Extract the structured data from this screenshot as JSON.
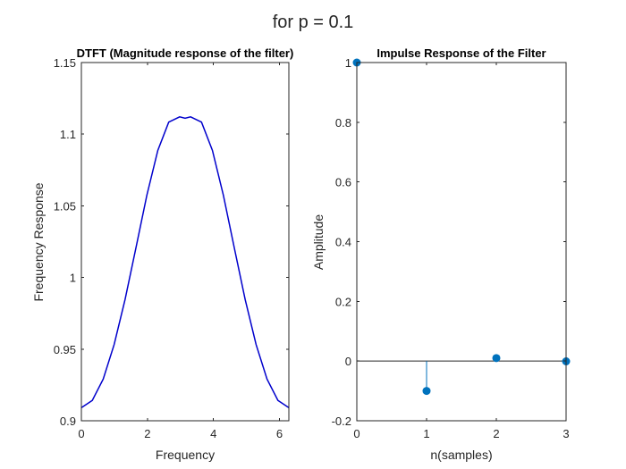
{
  "figure": {
    "suptitle": "for p = 0.1"
  },
  "chart_data": [
    {
      "type": "line",
      "title": "DTFT (Magnitude response of the filter)",
      "xlabel": "Frequency",
      "ylabel": "Frequency Response",
      "xlim": [
        0,
        6.2832
      ],
      "ylim": [
        0.9,
        1.15
      ],
      "xticks": [
        0,
        2,
        4,
        6
      ],
      "yticks": [
        0.9,
        0.95,
        1,
        1.05,
        1.1,
        1.15
      ],
      "xtick_labels": [
        "0",
        "2",
        "4",
        "6"
      ],
      "ytick_labels": [
        "0.9",
        "0.95",
        "1",
        "1.05",
        "1.1",
        "1.15"
      ],
      "grid": false,
      "color": "#0000cc",
      "series": [
        {
          "x": [
            0,
            0.3307,
            0.6614,
            0.9921,
            1.3228,
            1.6535,
            1.9842,
            2.3149,
            2.6456,
            2.9763,
            3.1416,
            3.307,
            3.6377,
            3.9684,
            4.2991,
            4.6298,
            4.9605,
            5.2912,
            5.6219,
            5.9526,
            6.2832
          ],
          "values": [
            0.9091,
            0.9142,
            0.9291,
            0.9532,
            0.9846,
            1.0208,
            1.0575,
            1.0887,
            1.1084,
            1.1121,
            1.1111,
            1.1121,
            1.1084,
            1.0887,
            1.0575,
            1.0208,
            0.9846,
            0.9532,
            0.9291,
            0.9142,
            0.9091
          ]
        }
      ]
    },
    {
      "type": "stem",
      "title": "Impulse Response of the Filter",
      "xlabel": "n(samples)",
      "ylabel": "Amplitude",
      "xlim": [
        0,
        3
      ],
      "ylim": [
        -0.2,
        1
      ],
      "xticks": [
        0,
        1,
        2,
        3
      ],
      "yticks": [
        -0.2,
        0,
        0.2,
        0.4,
        0.6,
        0.8,
        1
      ],
      "xtick_labels": [
        "0",
        "1",
        "2",
        "3"
      ],
      "ytick_labels": [
        "-0.2",
        "0",
        "0.2",
        "0.4",
        "0.6",
        "0.8",
        "1"
      ],
      "grid": false,
      "color": "#0072bd",
      "baseline": 0,
      "x": [
        0,
        1,
        2,
        3
      ],
      "values": [
        1,
        -0.1,
        0.01,
        -0.001
      ]
    }
  ]
}
